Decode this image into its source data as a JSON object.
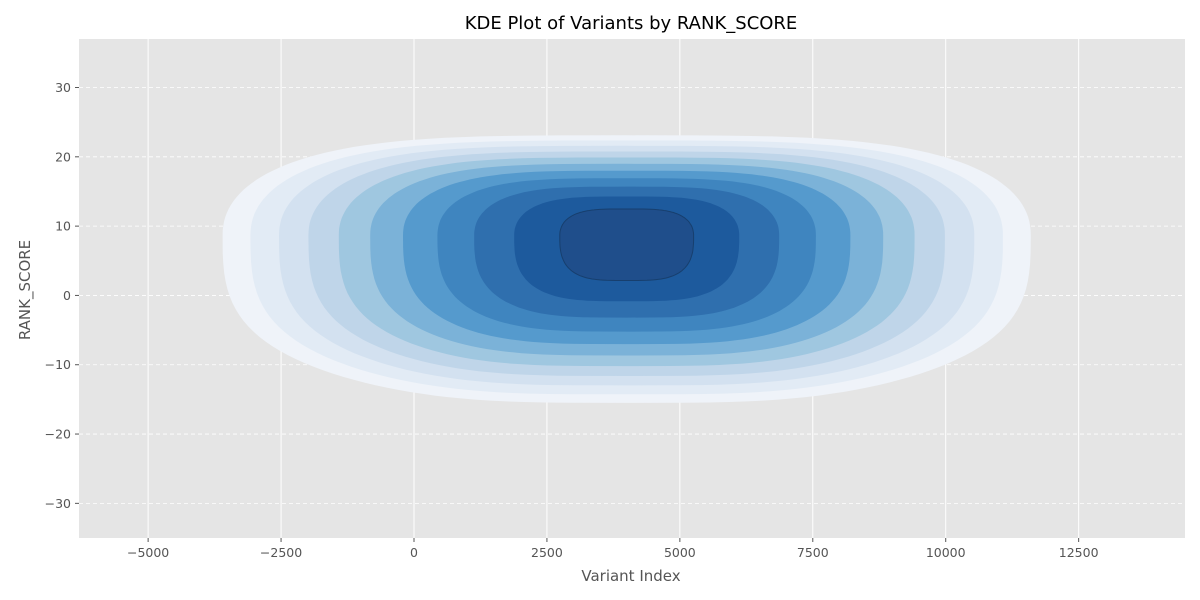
{
  "chart_data": {
    "type": "kde",
    "title": "KDE Plot of Variants by RANK_SCORE",
    "xlabel": "Variant Index",
    "ylabel": "RANK_SCORE",
    "xlim": [
      -6300,
      14500
    ],
    "ylim": [
      -35,
      37
    ],
    "x_ticks": [
      -5000,
      -2500,
      0,
      2500,
      5000,
      7500,
      10000,
      12500
    ],
    "x_tick_labels": [
      "−5000",
      "−2500",
      "0",
      "2500",
      "5000",
      "7500",
      "10000",
      "12500"
    ],
    "y_ticks": [
      -30,
      -20,
      -10,
      0,
      10,
      20,
      30
    ],
    "y_tick_labels": [
      "−30",
      "−20",
      "−10",
      "0",
      "10",
      "20",
      "30"
    ],
    "grid": {
      "x": "solid",
      "y": "dashed"
    },
    "kde": {
      "center": [
        4000,
        8.6
      ],
      "levels": 10,
      "x_extent": [
        -3400,
        11600
      ],
      "y_extent": [
        -15.5,
        23.1
      ],
      "colormap": [
        "#eff3f9",
        "#e2ebf5",
        "#d3e1f0",
        "#bfd5e9",
        "#9fc7e0",
        "#7bb2d8",
        "#559acd",
        "#3f85bf",
        "#2f6fae",
        "#1d5a9d",
        "#1f4e8b"
      ]
    },
    "colors": {
      "background": "#e5e5e5",
      "grid": "#ffffff",
      "contour_edge": "#173f6e"
    }
  }
}
